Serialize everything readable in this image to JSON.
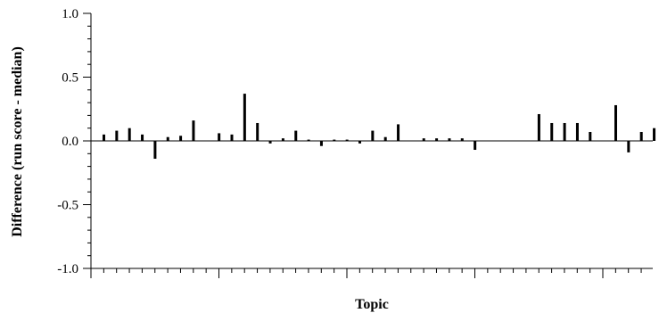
{
  "chart_data": {
    "type": "bar",
    "title": "",
    "xlabel": "Topic",
    "ylabel": "Difference (run score - median)",
    "ylim": [
      -1.0,
      1.0
    ],
    "yticks": [
      "1.0",
      "0.5",
      "0.0",
      "-0.5",
      "-1.0"
    ],
    "ytick_values": [
      1.0,
      0.5,
      0.0,
      -0.5,
      -1.0
    ],
    "grid": false,
    "series": [
      {
        "values": [
          0.05,
          0.08,
          0.1,
          0.05,
          -0.14,
          0.03,
          0.04,
          0.16,
          0.0,
          0.06,
          0.05,
          0.37,
          0.14,
          -0.02,
          0.02,
          0.08,
          0.01,
          -0.04,
          0.01,
          0.01,
          -0.02,
          0.08,
          0.03,
          0.13,
          0.0,
          0.02,
          0.02,
          0.02,
          0.02,
          -0.07,
          0.0,
          0.0,
          0.0,
          0.0,
          0.21,
          0.14,
          0.14,
          0.14,
          0.07,
          0.0,
          0.28,
          -0.09,
          0.07,
          0.1
        ]
      }
    ]
  }
}
